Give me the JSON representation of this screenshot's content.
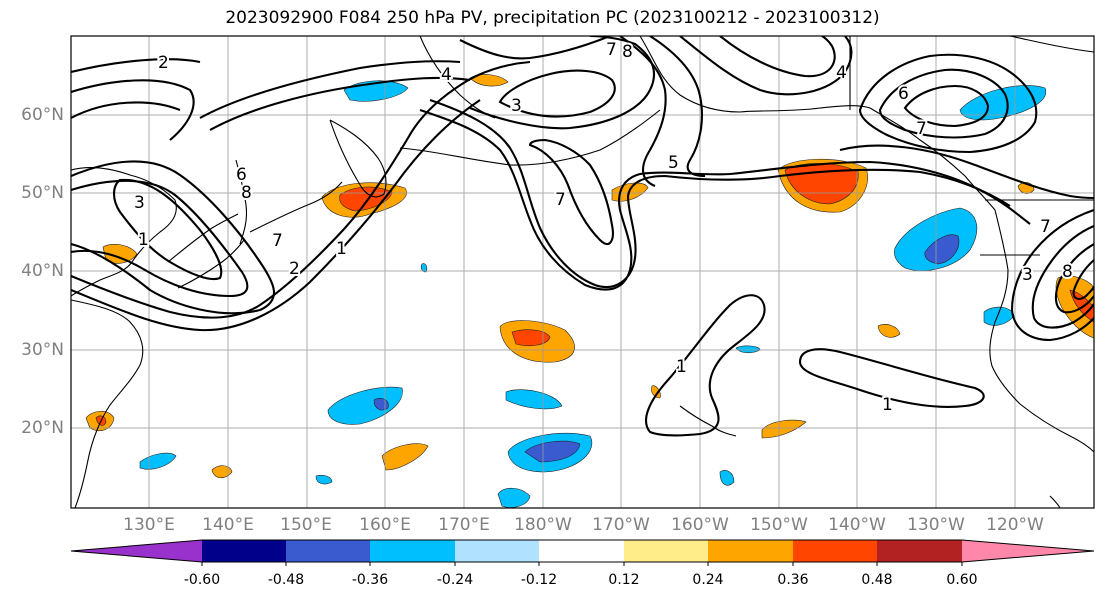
{
  "title": "2023092900 F084 250 hPa PV, precipitation PC (2023100212 - 2023100312)",
  "lat_labels": [
    "60°N",
    "50°N",
    "40°N",
    "30°N",
    "20°N"
  ],
  "lon_labels": [
    "130°E",
    "140°E",
    "150°E",
    "160°E",
    "170°E",
    "180°W",
    "170°W",
    "160°W",
    "150°W",
    "140°W",
    "130°W",
    "120°W"
  ],
  "map": {
    "extent": {
      "lon_min": 120,
      "lon_max": 250,
      "lat_min": 10,
      "lat_max": 70
    },
    "contour_field": "250 hPa PV",
    "contour_labels": [
      "2",
      "8",
      "6",
      "4",
      "3",
      "8",
      "7",
      "7",
      "1",
      "2",
      "1",
      "7",
      "3",
      "5",
      "1",
      "1",
      "6",
      "7",
      "4",
      "7",
      "8",
      "3"
    ]
  },
  "colorbar": {
    "tick_labels": [
      "-0.60",
      "-0.48",
      "-0.36",
      "-0.24",
      "-0.12",
      "0.12",
      "0.24",
      "0.36",
      "0.48",
      "0.60"
    ],
    "colors": [
      "#9932cc",
      "#00008b",
      "#3a5bd0",
      "#00bfff",
      "#b0e2ff",
      "#ffffff",
      "#ffed8a",
      "#ffa500",
      "#ff4500",
      "#b22222",
      "#ff88aa"
    ],
    "extend": "both"
  }
}
